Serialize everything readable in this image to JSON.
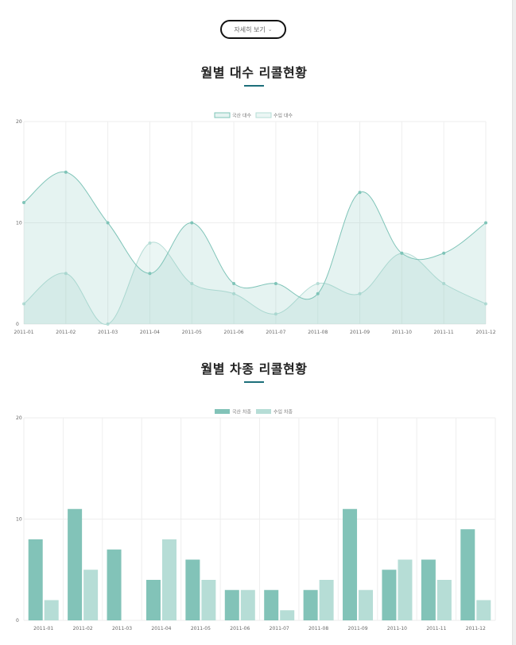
{
  "button": {
    "label": "자세히 보기",
    "chevron": "⌄"
  },
  "colors": {
    "domestic_line": "#7fc4b8",
    "domestic_fill": "rgba(127,196,184,0.20)",
    "import_line": "#b6ddd6",
    "import_fill": "rgba(182,221,214,0.28)",
    "domestic_bar": "#82c3b8",
    "import_bar": "#b6ddd6",
    "grid": "#eeeeee",
    "title_underline": "#1d6f7a"
  },
  "charts": [
    {
      "title": "월별 대수 리콜현황",
      "chart_data": {
        "type": "area",
        "categories": [
          "2011-01",
          "2011-02",
          "2011-03",
          "2011-04",
          "2011-05",
          "2011-06",
          "2011-07",
          "2011-08",
          "2011-09",
          "2011-10",
          "2011-11",
          "2011-12"
        ],
        "series": [
          {
            "name": "국산 대수",
            "values": [
              12,
              15,
              10,
              5,
              10,
              4,
              4,
              3,
              13,
              7,
              7,
              10
            ]
          },
          {
            "name": "수입 대수",
            "values": [
              2,
              5,
              0,
              8,
              4,
              3,
              1,
              4,
              3,
              7,
              4,
              2
            ]
          }
        ],
        "ylim": [
          0,
          20
        ],
        "yticks": [
          "0",
          "10",
          "20"
        ],
        "legend": "top-center",
        "grid": true
      }
    },
    {
      "title": "월별 차종 리콜현황",
      "chart_data": {
        "type": "bar",
        "categories": [
          "2011-01",
          "2011-02",
          "2011-03",
          "2011-04",
          "2011-05",
          "2011-06",
          "2011-07",
          "2011-08",
          "2011-09",
          "2011-10",
          "2011-11",
          "2011-12"
        ],
        "series": [
          {
            "name": "국산 차종",
            "values": [
              8,
              11,
              7,
              4,
              6,
              3,
              3,
              3,
              11,
              5,
              6,
              9
            ]
          },
          {
            "name": "수입 차종",
            "values": [
              2,
              5,
              0,
              8,
              4,
              3,
              1,
              4,
              3,
              6,
              4,
              2
            ]
          }
        ],
        "ylim": [
          0,
          20
        ],
        "yticks": [
          "0",
          "10",
          "20"
        ],
        "legend": "top-center",
        "grid": true
      }
    }
  ]
}
